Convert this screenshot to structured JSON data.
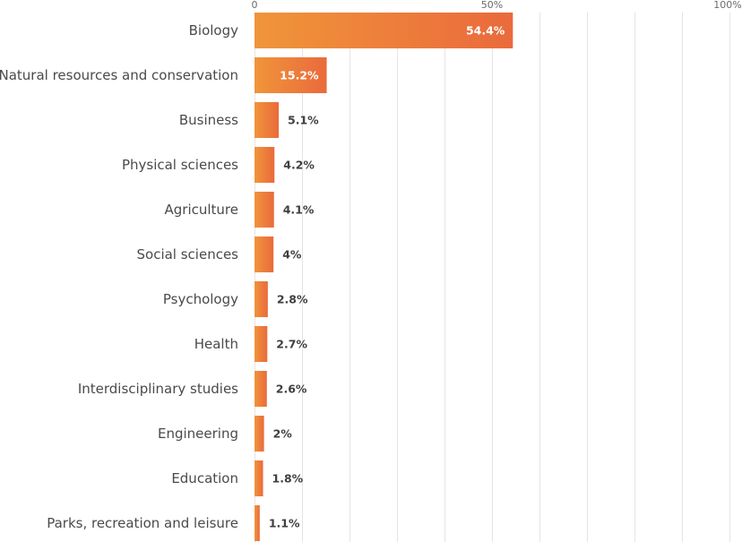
{
  "chart_data": {
    "type": "bar",
    "orientation": "horizontal",
    "title": "",
    "xlabel": "",
    "ylabel": "",
    "xlim": [
      0,
      100
    ],
    "x_ticks": [
      {
        "value": 0,
        "label": "0"
      },
      {
        "value": 50,
        "label": "50%"
      },
      {
        "value": 100,
        "label": "100%"
      }
    ],
    "gridlines_every": 10,
    "grid": true,
    "categories": [
      "Biology",
      "Natural resources and conservation",
      "Business",
      "Physical sciences",
      "Agriculture",
      "Social sciences",
      "Psychology",
      "Health",
      "Interdisciplinary studies",
      "Engineering",
      "Education",
      "Parks, recreation and leisure"
    ],
    "values": [
      54.4,
      15.2,
      5.1,
      4.2,
      4.1,
      4,
      2.8,
      2.7,
      2.6,
      2,
      1.8,
      1.1
    ],
    "value_labels": [
      "54.4%",
      "15.2%",
      "5.1%",
      "4.2%",
      "4.1%",
      "4%",
      "2.8%",
      "2.7%",
      "2.6%",
      "2%",
      "1.8%",
      "1.1%"
    ],
    "colors": {
      "bar_gradient_start": "#f0953a",
      "bar_gradient_end": "#ea6a3c",
      "label_inside": "#ffffff",
      "label_outside": "#3f3f3f",
      "grid": "#e4e4e4",
      "category_text": "#4a4a4a",
      "tick_text": "#6a6a6a"
    }
  }
}
